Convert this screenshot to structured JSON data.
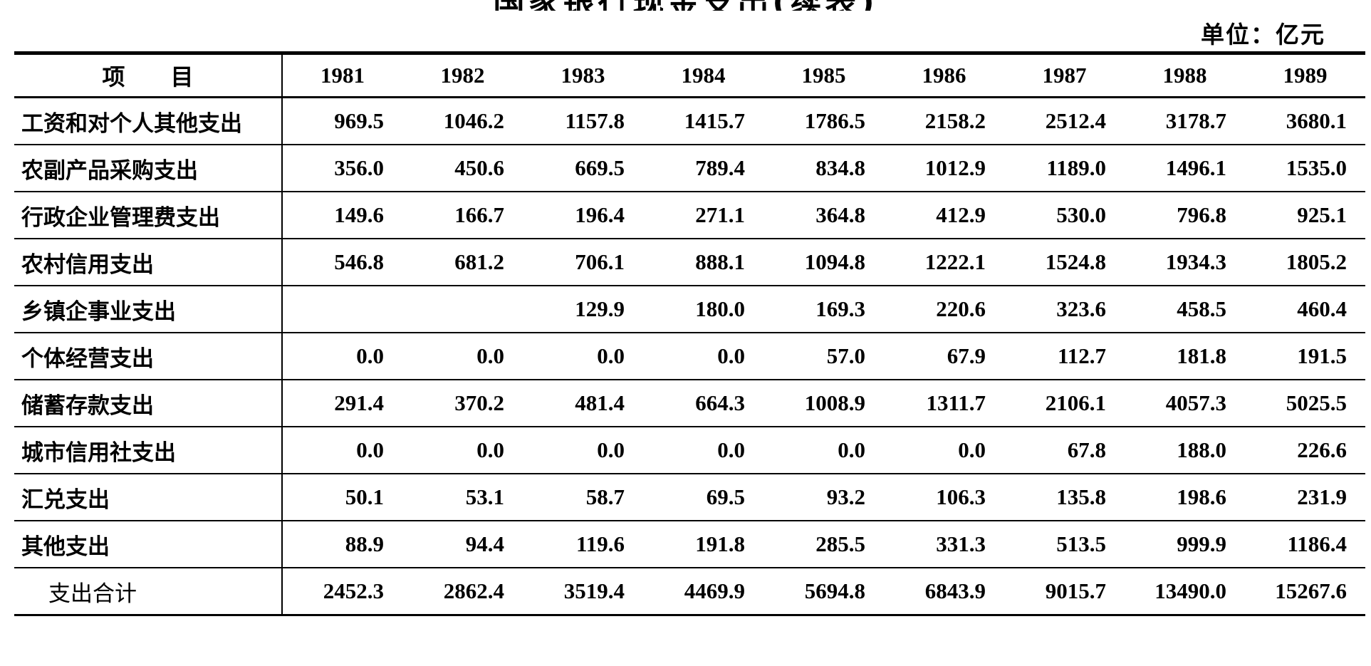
{
  "page": {
    "title_partial": "国家银行现金支出(续表)",
    "unit_label": "单位：亿元"
  },
  "table": {
    "header": {
      "item_label": "项　　目",
      "years": [
        "1981",
        "1982",
        "1983",
        "1984",
        "1985",
        "1986",
        "1987",
        "1988",
        "1989"
      ]
    },
    "rows": [
      {
        "label": "工资和对个人其他支出",
        "indent": false,
        "bold": true,
        "values": [
          "969.5",
          "1046.2",
          "1157.8",
          "1415.7",
          "1786.5",
          "2158.2",
          "2512.4",
          "3178.7",
          "3680.1"
        ]
      },
      {
        "label": "农副产品采购支出",
        "indent": false,
        "bold": true,
        "values": [
          "356.0",
          "450.6",
          "669.5",
          "789.4",
          "834.8",
          "1012.9",
          "1189.0",
          "1496.1",
          "1535.0"
        ]
      },
      {
        "label": "行政企业管理费支出",
        "indent": false,
        "bold": true,
        "values": [
          "149.6",
          "166.7",
          "196.4",
          "271.1",
          "364.8",
          "412.9",
          "530.0",
          "796.8",
          "925.1"
        ]
      },
      {
        "label": "农村信用支出",
        "indent": false,
        "bold": true,
        "values": [
          "546.8",
          "681.2",
          "706.1",
          "888.1",
          "1094.8",
          "1222.1",
          "1524.8",
          "1934.3",
          "1805.2"
        ]
      },
      {
        "label": "乡镇企事业支出",
        "indent": false,
        "bold": true,
        "values": [
          "",
          "",
          "129.9",
          "180.0",
          "169.3",
          "220.6",
          "323.6",
          "458.5",
          "460.4"
        ]
      },
      {
        "label": "个体经营支出",
        "indent": false,
        "bold": true,
        "values": [
          "0.0",
          "0.0",
          "0.0",
          "0.0",
          "57.0",
          "67.9",
          "112.7",
          "181.8",
          "191.5"
        ]
      },
      {
        "label": "储蓄存款支出",
        "indent": false,
        "bold": true,
        "values": [
          "291.4",
          "370.2",
          "481.4",
          "664.3",
          "1008.9",
          "1311.7",
          "2106.1",
          "4057.3",
          "5025.5"
        ]
      },
      {
        "label": "城市信用社支出",
        "indent": false,
        "bold": true,
        "values": [
          "0.0",
          "0.0",
          "0.0",
          "0.0",
          "0.0",
          "0.0",
          "67.8",
          "188.0",
          "226.6"
        ]
      },
      {
        "label": "汇兑支出",
        "indent": false,
        "bold": true,
        "values": [
          "50.1",
          "53.1",
          "58.7",
          "69.5",
          "93.2",
          "106.3",
          "135.8",
          "198.6",
          "231.9"
        ]
      },
      {
        "label": "其他支出",
        "indent": false,
        "bold": true,
        "values": [
          "88.9",
          "94.4",
          "119.6",
          "191.8",
          "285.5",
          "331.3",
          "513.5",
          "999.9",
          "1186.4"
        ]
      },
      {
        "label": "支出合计",
        "indent": true,
        "bold": false,
        "values": [
          "2452.3",
          "2862.4",
          "3519.4",
          "4469.9",
          "5694.8",
          "6843.9",
          "9015.7",
          "13490.0",
          "15267.6"
        ]
      }
    ]
  },
  "chart_data": {
    "type": "table",
    "title": "国家银行现金支出(续表)",
    "unit": "亿元",
    "categories": [
      "1981",
      "1982",
      "1983",
      "1984",
      "1985",
      "1986",
      "1987",
      "1988",
      "1989"
    ],
    "series": [
      {
        "name": "工资和对个人其他支出",
        "values": [
          969.5,
          1046.2,
          1157.8,
          1415.7,
          1786.5,
          2158.2,
          2512.4,
          3178.7,
          3680.1
        ]
      },
      {
        "name": "农副产品采购支出",
        "values": [
          356.0,
          450.6,
          669.5,
          789.4,
          834.8,
          1012.9,
          1189.0,
          1496.1,
          1535.0
        ]
      },
      {
        "name": "行政企业管理费支出",
        "values": [
          149.6,
          166.7,
          196.4,
          271.1,
          364.8,
          412.9,
          530.0,
          796.8,
          925.1
        ]
      },
      {
        "name": "农村信用支出",
        "values": [
          546.8,
          681.2,
          706.1,
          888.1,
          1094.8,
          1222.1,
          1524.8,
          1934.3,
          1805.2
        ]
      },
      {
        "name": "乡镇企事业支出",
        "values": [
          null,
          null,
          129.9,
          180.0,
          169.3,
          220.6,
          323.6,
          458.5,
          460.4
        ]
      },
      {
        "name": "个体经营支出",
        "values": [
          0.0,
          0.0,
          0.0,
          0.0,
          57.0,
          67.9,
          112.7,
          181.8,
          191.5
        ]
      },
      {
        "name": "储蓄存款支出",
        "values": [
          291.4,
          370.2,
          481.4,
          664.3,
          1008.9,
          1311.7,
          2106.1,
          4057.3,
          5025.5
        ]
      },
      {
        "name": "城市信用社支出",
        "values": [
          0.0,
          0.0,
          0.0,
          0.0,
          0.0,
          0.0,
          67.8,
          188.0,
          226.6
        ]
      },
      {
        "name": "汇兑支出",
        "values": [
          50.1,
          53.1,
          58.7,
          69.5,
          93.2,
          106.3,
          135.8,
          198.6,
          231.9
        ]
      },
      {
        "name": "其他支出",
        "values": [
          88.9,
          94.4,
          119.6,
          191.8,
          285.5,
          331.3,
          513.5,
          999.9,
          1186.4
        ]
      },
      {
        "name": "支出合计",
        "values": [
          2452.3,
          2862.4,
          3519.4,
          4469.9,
          5694.8,
          6843.9,
          9015.7,
          13490.0,
          15267.6
        ]
      }
    ]
  }
}
